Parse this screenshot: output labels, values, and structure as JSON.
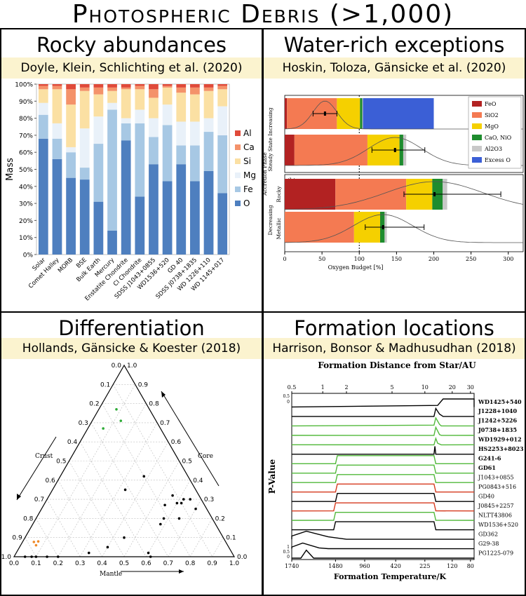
{
  "title": "Photospheric Debris (>1,000)",
  "panels": [
    {
      "title": "Rocky abundances",
      "citation": "Doyle, Klein, Schlichting et al. (2020)"
    },
    {
      "title": "Water-rich exceptions",
      "citation": "Hoskin, Toloza, Gänsicke et al. (2020)"
    },
    {
      "title": "Differentiation",
      "citation": "Hollands, Gänsicke & Koester (2018)"
    },
    {
      "title": "Formation locations",
      "citation": "Harrison, Bonsor & Madhusudhan (2018)"
    }
  ],
  "chart_data": [
    {
      "type": "bar",
      "stacked": true,
      "ylabel": "Mass",
      "ylim": [
        0,
        100
      ],
      "yticks": [
        "0%",
        "10%",
        "20%",
        "30%",
        "40%",
        "50%",
        "60%",
        "70%",
        "80%",
        "90%",
        "100%"
      ],
      "categories": [
        "Solar",
        "Comet Halley",
        "MORB",
        "BSE",
        "Bulk Earth",
        "Mercury",
        "Enstatite Chondrite",
        "CI Chondrite",
        "SDSS J1043+0855",
        "WD1536+520",
        "GD 40",
        "SDSS J0738+1835",
        "WD 1226+110",
        "WD 1145+017"
      ],
      "legend_position": "right",
      "series": [
        {
          "name": "O",
          "color": "#4e7fbf",
          "values": [
            68,
            56,
            45,
            44,
            31,
            14,
            67,
            34,
            53,
            43,
            53,
            43,
            49,
            36
          ]
        },
        {
          "name": "Fe",
          "color": "#a7c8e4",
          "values": [
            14,
            12,
            15,
            7,
            34,
            71,
            10,
            43,
            16,
            33,
            11,
            21,
            23,
            34
          ]
        },
        {
          "name": "Mg",
          "color": "#e9f1f9",
          "values": [
            7,
            9,
            3,
            23,
            16,
            4,
            3,
            8,
            11,
            12,
            14,
            14,
            8,
            17
          ]
        },
        {
          "name": "Si",
          "color": "#fbe0a3",
          "values": [
            8,
            20,
            25,
            22,
            13,
            7,
            17,
            12,
            12,
            10,
            17,
            16,
            16,
            10
          ]
        },
        {
          "name": "Ca",
          "color": "#f4926a",
          "values": [
            2,
            2,
            9,
            2,
            4,
            2,
            1,
            2,
            5,
            1,
            3,
            4,
            2,
            2
          ]
        },
        {
          "name": "Al",
          "color": "#e04a3a",
          "values": [
            1,
            1,
            3,
            2,
            2,
            2,
            2,
            1,
            3,
            1,
            2,
            2,
            2,
            1
          ]
        }
      ]
    },
    {
      "type": "bar",
      "stacked": true,
      "horizontal": true,
      "xlabel": "Oxygen Budget [%]",
      "xlim": [
        0,
        320
      ],
      "xticks": [
        0,
        50,
        100,
        150,
        200,
        250,
        300
      ],
      "ylabel_top": "Steady State Increasing",
      "ylabel_mid": "Accretion Phase",
      "ylabel_bottom": "Decreasing",
      "subpanel_labels": [
        "(a)",
        "(b)"
      ],
      "row_labels": [
        "Rocky",
        "Metallic"
      ],
      "legend": [
        {
          "name": "FeO",
          "color": "#b22222"
        },
        {
          "name": "SiO2",
          "color": "#f47a52"
        },
        {
          "name": "MgO",
          "color": "#f5d000"
        },
        {
          "name": "CaO, NiO",
          "color": "#1e8c2e"
        },
        {
          "name": "Al2O3",
          "color": "#c8c8c8"
        },
        {
          "name": "Excess O",
          "color": "#3b5fd6"
        }
      ],
      "rows": [
        {
          "panel": "a",
          "segments": [
            [
              "FeO",
              3
            ],
            [
              "SiO2",
              67
            ],
            [
              "MgO",
              31
            ],
            [
              "CaO, NiO",
              3
            ],
            [
              "Al2O3",
              1
            ],
            [
              "Excess O",
              95
            ]
          ],
          "marker": 54,
          "error": [
            38,
            70
          ]
        },
        {
          "panel": "a",
          "segments": [
            [
              "FeO",
              13
            ],
            [
              "SiO2",
              98
            ],
            [
              "MgO",
              43
            ],
            [
              "CaO, NiO",
              5
            ],
            [
              "Al2O3",
              4
            ]
          ],
          "marker": 148,
          "error": [
            117,
            188
          ]
        },
        {
          "panel": "b",
          "segments": [
            [
              "FeO",
              68
            ],
            [
              "SiO2",
              95
            ],
            [
              "MgO",
              35
            ],
            [
              "CaO, NiO",
              14
            ],
            [
              "Al2O3",
              6
            ]
          ],
          "marker": 201,
          "error": [
            160,
            290
          ]
        },
        {
          "panel": "b",
          "segments": [
            [
              "SiO2",
              93
            ],
            [
              "MgO",
              35
            ],
            [
              "CaO, NiO",
              6
            ],
            [
              "Al2O3",
              3
            ]
          ],
          "marker": 132,
          "error": [
            108,
            187
          ]
        }
      ]
    },
    {
      "type": "scatter",
      "ternary": true,
      "axis_labels": [
        "Crust",
        "Core",
        "Mantle"
      ],
      "tick_labels": [
        "0.0",
        "0.1",
        "0.2",
        "0.3",
        "0.4",
        "0.5",
        "0.6",
        "0.7",
        "0.8",
        "0.9",
        "1.0"
      ],
      "points_black": [
        [
          0.05,
          0.3,
          0.65
        ],
        [
          0.05,
          0.25,
          0.7
        ],
        [
          0.08,
          0.3,
          0.62
        ],
        [
          0.1,
          0.28,
          0.62
        ],
        [
          0.12,
          0.28,
          0.6
        ],
        [
          0.12,
          0.32,
          0.56
        ],
        [
          0.15,
          0.2,
          0.65
        ],
        [
          0.18,
          0.27,
          0.55
        ],
        [
          0.2,
          0.42,
          0.38
        ],
        [
          0.22,
          0.2,
          0.58
        ],
        [
          0.25,
          0.17,
          0.58
        ],
        [
          0.32,
          0.35,
          0.33
        ],
        [
          0.38,
          0.02,
          0.6
        ],
        [
          0.38,
          0.0,
          0.62
        ],
        [
          0.45,
          0.1,
          0.45
        ],
        [
          0.55,
          0.05,
          0.4
        ],
        [
          0.65,
          0.02,
          0.33
        ],
        [
          0.8,
          0.0,
          0.2
        ],
        [
          0.85,
          0.0,
          0.15
        ],
        [
          0.9,
          0.0,
          0.1
        ],
        [
          0.92,
          0.0,
          0.08
        ],
        [
          0.95,
          0.0,
          0.05
        ]
      ],
      "points_green": [
        [
          0.15,
          0.77,
          0.08
        ],
        [
          0.16,
          0.71,
          0.13
        ],
        [
          0.26,
          0.67,
          0.07
        ]
      ],
      "points_orange": [
        [
          0.85,
          0.08,
          0.07
        ],
        [
          0.87,
          0.06,
          0.07
        ],
        [
          0.92,
          0.17,
          0.0
        ]
      ]
    },
    {
      "type": "line",
      "title": "Formation Distance from Star/AU",
      "xlabel": "Formation Temperature/K",
      "ylabel": "P-Value",
      "top_ticks": [
        "0.5",
        "1",
        "2",
        "5",
        "10",
        "20",
        "30"
      ],
      "bottom_ticks": [
        "1740",
        "1480",
        "960",
        "420",
        "225",
        "120",
        "80"
      ],
      "left_ticks_top": [
        "0.5",
        "0"
      ],
      "left_ticks_bottom": [
        "1",
        "0.5",
        "0"
      ],
      "series": [
        {
          "name": "WD1425+540",
          "color": "#000000",
          "bold": true,
          "profile": [
            [
              0.8,
              0.2
            ],
            [
              0.83,
              1
            ],
            [
              1.0,
              1
            ]
          ]
        },
        {
          "name": "J1228+1040",
          "color": "#000000",
          "bold": true,
          "profile": [
            [
              0.78,
              0.0
            ],
            [
              0.79,
              1
            ],
            [
              0.81,
              0.3
            ],
            [
              0.83,
              0
            ]
          ]
        },
        {
          "name": "J1242+5226",
          "color": "#52b93b",
          "bold": true,
          "profile": [
            [
              0.78,
              0.1
            ],
            [
              0.79,
              1
            ],
            [
              0.81,
              0.2
            ],
            [
              0.82,
              0
            ]
          ]
        },
        {
          "name": "J0738+1835",
          "color": "#52b93b",
          "bold": true,
          "profile": [
            [
              0.78,
              0
            ],
            [
              0.79,
              1
            ],
            [
              0.81,
              0.1
            ],
            [
              0.82,
              0
            ]
          ]
        },
        {
          "name": "WD1929+012",
          "color": "#52b93b",
          "bold": true,
          "profile": [
            [
              0.78,
              0
            ],
            [
              0.79,
              0.8
            ],
            [
              0.8,
              0.2
            ],
            [
              0.82,
              0
            ]
          ]
        },
        {
          "name": "HS2253+8023",
          "color": "#000000",
          "bold": true,
          "profile": [
            [
              0.78,
              0
            ],
            [
              0.785,
              1
            ],
            [
              0.79,
              0
            ]
          ]
        },
        {
          "name": "G241-6",
          "color": "#52b93b",
          "bold": true,
          "profile": [
            [
              0.24,
              0
            ],
            [
              0.25,
              1
            ],
            [
              0.78,
              1
            ],
            [
              0.79,
              0
            ]
          ]
        },
        {
          "name": "GD61",
          "color": "#52b93b",
          "bold": true,
          "profile": [
            [
              0.24,
              0
            ],
            [
              0.25,
              1
            ],
            [
              0.78,
              1
            ],
            [
              0.79,
              0
            ]
          ]
        },
        {
          "name": "J1043+0855",
          "color": "#52b93b",
          "bold": false,
          "profile": [
            [
              0.24,
              0
            ],
            [
              0.25,
              1
            ],
            [
              0.78,
              1
            ],
            [
              0.79,
              0
            ]
          ]
        },
        {
          "name": "PG0843+516",
          "color": "#d63a1e",
          "bold": false,
          "profile": [
            [
              0.24,
              0
            ],
            [
              0.25,
              1
            ],
            [
              0.78,
              1
            ],
            [
              0.79,
              0
            ]
          ]
        },
        {
          "name": "GD40",
          "color": "#000000",
          "bold": false,
          "profile": [
            [
              0.24,
              0
            ],
            [
              0.25,
              1
            ],
            [
              0.78,
              1
            ],
            [
              0.79,
              0
            ]
          ]
        },
        {
          "name": "J0845+2257",
          "color": "#d63a1e",
          "bold": false,
          "profile": [
            [
              0.23,
              0
            ],
            [
              0.24,
              1
            ],
            [
              0.78,
              1
            ],
            [
              0.79,
              0
            ]
          ]
        },
        {
          "name": "NLTT43806",
          "color": "#52b93b",
          "bold": false,
          "profile": [
            [
              0.23,
              0
            ],
            [
              0.24,
              1
            ],
            [
              0.78,
              1
            ],
            [
              0.79,
              0
            ]
          ]
        },
        {
          "name": "WD1536+520",
          "color": "#000000",
          "bold": false,
          "profile": [
            [
              0.23,
              0
            ],
            [
              0.24,
              1
            ],
            [
              0.78,
              1
            ],
            [
              0.79,
              0
            ]
          ]
        },
        {
          "name": "GD362",
          "color": "#000000",
          "bold": false,
          "profile": [
            [
              0.0,
              0.4
            ],
            [
              0.08,
              1
            ],
            [
              0.2,
              0.3
            ],
            [
              0.3,
              0
            ]
          ]
        },
        {
          "name": "G29-38",
          "color": "#000000",
          "bold": false,
          "profile": [
            [
              0.0,
              0.2
            ],
            [
              0.06,
              0.7
            ],
            [
              0.15,
              0.1
            ],
            [
              0.2,
              0
            ]
          ]
        },
        {
          "name": "PG1225-079",
          "color": "#000000",
          "bold": false,
          "profile": [
            [
              0.05,
              0
            ],
            [
              0.08,
              1
            ],
            [
              0.12,
              0
            ]
          ]
        }
      ]
    }
  ]
}
